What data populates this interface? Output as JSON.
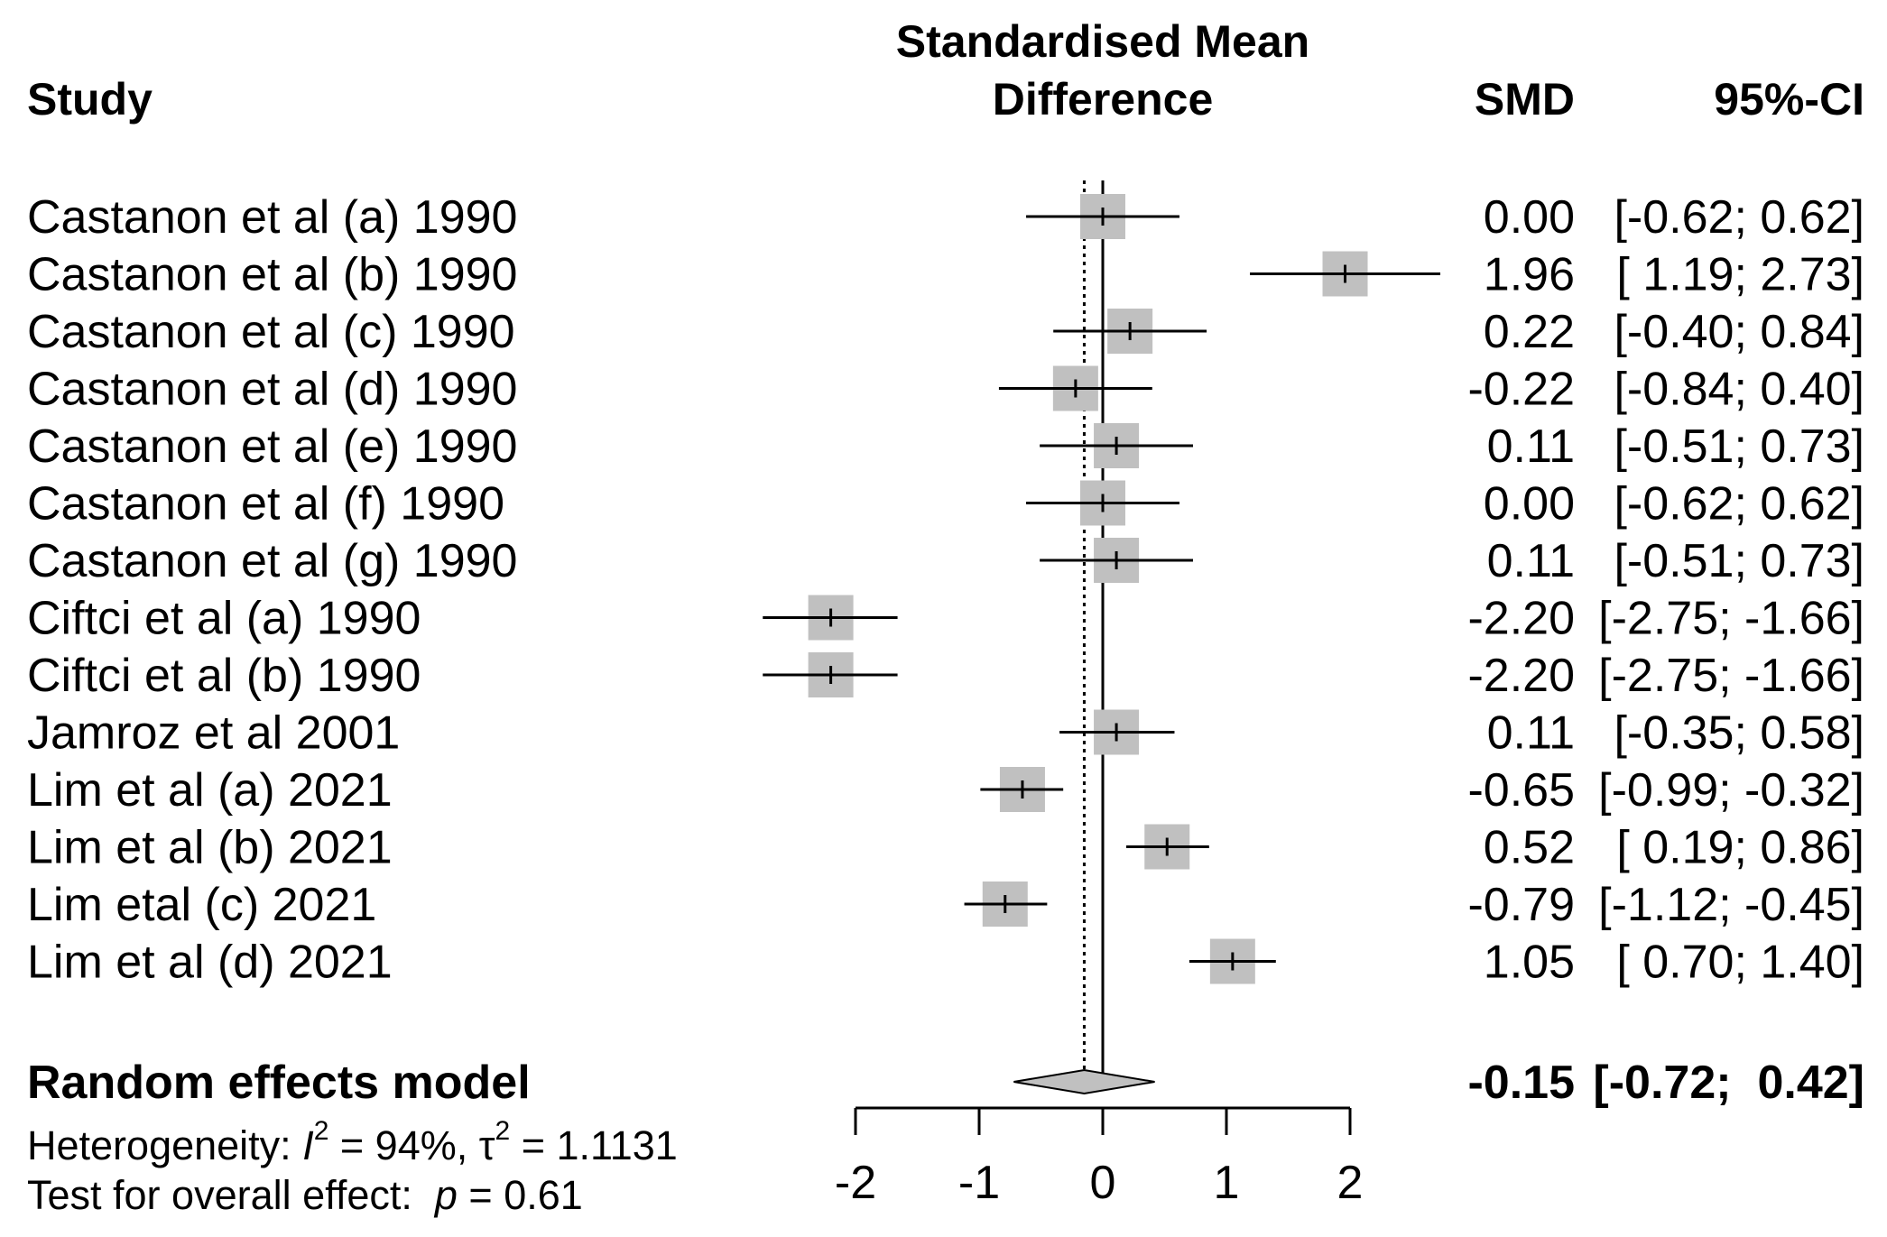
{
  "chart_data": {
    "type": "forest",
    "headers": {
      "study": "Study",
      "effect_line1": "Standardised Mean",
      "effect_line2": "Difference",
      "smd": "SMD",
      "ci": "95%-CI"
    },
    "studies": [
      {
        "label": "Castanon et al (a) 1990",
        "smd": 0.0,
        "lo": -0.62,
        "hi": 0.62,
        "smd_text": "0.00",
        "ci_text": "[-0.62;  0.62]"
      },
      {
        "label": "Castanon et al (b) 1990",
        "smd": 1.96,
        "lo": 1.19,
        "hi": 2.73,
        "smd_text": "1.96",
        "ci_text": "[ 1.19;  2.73]"
      },
      {
        "label": "Castanon et al (c) 1990",
        "smd": 0.22,
        "lo": -0.4,
        "hi": 0.84,
        "smd_text": "0.22",
        "ci_text": "[-0.40;  0.84]"
      },
      {
        "label": "Castanon et al (d) 1990",
        "smd": -0.22,
        "lo": -0.84,
        "hi": 0.4,
        "smd_text": "-0.22",
        "ci_text": "[-0.84;  0.40]"
      },
      {
        "label": "Castanon et al (e) 1990",
        "smd": 0.11,
        "lo": -0.51,
        "hi": 0.73,
        "smd_text": "0.11",
        "ci_text": "[-0.51;  0.73]"
      },
      {
        "label": "Castanon et al (f) 1990",
        "smd": 0.0,
        "lo": -0.62,
        "hi": 0.62,
        "smd_text": "0.00",
        "ci_text": "[-0.62;  0.62]"
      },
      {
        "label": "Castanon et al (g) 1990",
        "smd": 0.11,
        "lo": -0.51,
        "hi": 0.73,
        "smd_text": "0.11",
        "ci_text": "[-0.51;  0.73]"
      },
      {
        "label": "Ciftci et al (a) 1990",
        "smd": -2.2,
        "lo": -2.75,
        "hi": -1.66,
        "smd_text": "-2.20",
        "ci_text": "[-2.75; -1.66]"
      },
      {
        "label": "Ciftci et al (b) 1990",
        "smd": -2.2,
        "lo": -2.75,
        "hi": -1.66,
        "smd_text": "-2.20",
        "ci_text": "[-2.75; -1.66]"
      },
      {
        "label": "Jamroz et al 2001",
        "smd": 0.11,
        "lo": -0.35,
        "hi": 0.58,
        "smd_text": "0.11",
        "ci_text": "[-0.35;  0.58]"
      },
      {
        "label": "Lim et al (a) 2021",
        "smd": -0.65,
        "lo": -0.99,
        "hi": -0.32,
        "smd_text": "-0.65",
        "ci_text": "[-0.99; -0.32]"
      },
      {
        "label": "Lim et al (b) 2021",
        "smd": 0.52,
        "lo": 0.19,
        "hi": 0.86,
        "smd_text": "0.52",
        "ci_text": "[ 0.19;  0.86]"
      },
      {
        "label": "Lim etal (c) 2021",
        "smd": -0.79,
        "lo": -1.12,
        "hi": -0.45,
        "smd_text": "-0.79",
        "ci_text": "[-1.12; -0.45]"
      },
      {
        "label": "Lim et al (d) 2021",
        "smd": 1.05,
        "lo": 0.7,
        "hi": 1.4,
        "smd_text": "1.05",
        "ci_text": "[ 0.70;  1.40]"
      }
    ],
    "summary": {
      "label": "Random effects model",
      "smd": -0.15,
      "lo": -0.72,
      "hi": 0.42,
      "smd_text": "-0.15",
      "ci_text": "[-0.72;  0.42]"
    },
    "heterogeneity": {
      "prefix": "Heterogeneity: ",
      "i2_symbol": "I",
      "sup": "2",
      "i2_value": " = 94%, ",
      "tau_symbol": "τ",
      "tau_value": " = 1.1131"
    },
    "overall_test": {
      "prefix": "Test for overall effect:  ",
      "p_symbol": "p",
      "p_value": " = 0.61"
    },
    "x_axis": {
      "ticks": [
        -2,
        -1,
        0,
        1,
        2
      ],
      "tick_labels": [
        "-2",
        "-1",
        "0",
        "1",
        "2"
      ],
      "xlim": [
        -2,
        2
      ]
    },
    "null_line": 0,
    "colors": {
      "box": "#c0c0c0",
      "diamond": "#c0c0c0",
      "line": "#000000"
    }
  }
}
